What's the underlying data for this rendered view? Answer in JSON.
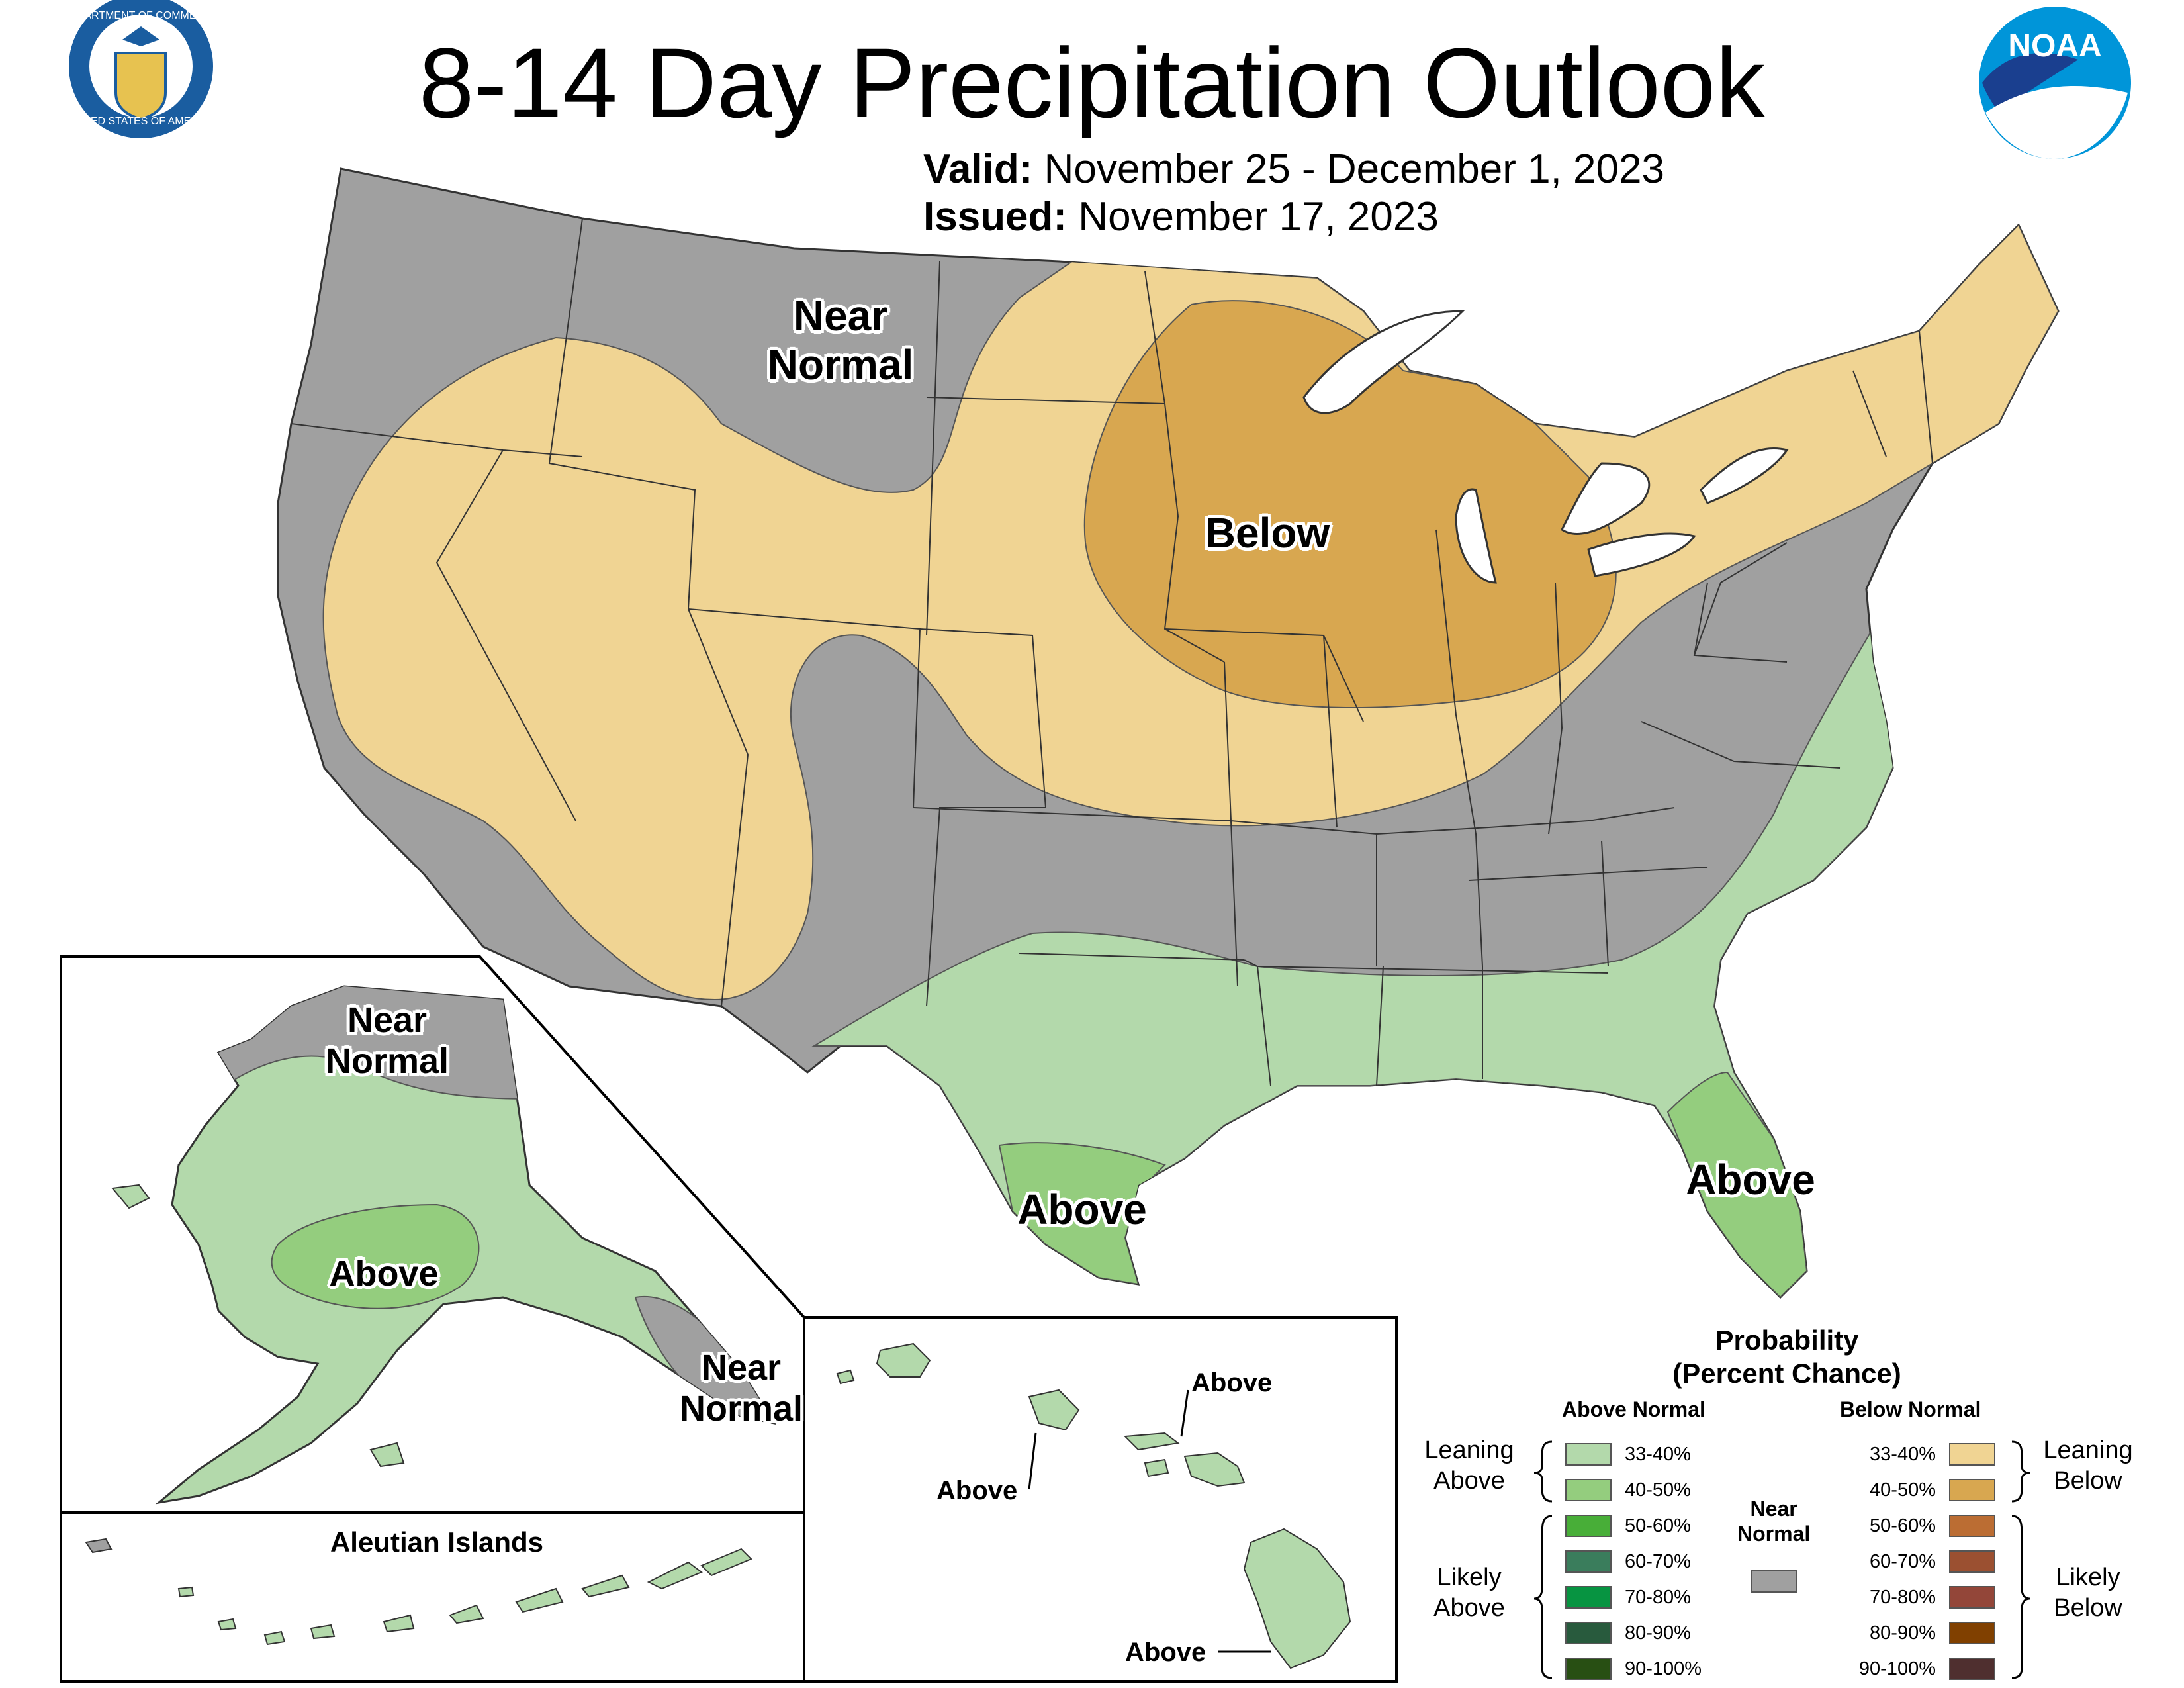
{
  "title": "8-14 Day Precipitation Outlook",
  "validity": {
    "valid_key": "Valid:",
    "valid_value": "November 25 - December 1, 2023",
    "issued_key": "Issued:",
    "issued_value": "November 17, 2023"
  },
  "logos": {
    "commerce_seal_top": "DEPARTMENT OF COMMERCE",
    "commerce_seal_bottom": "UNITED STATES OF AMERICA",
    "noaa": "NOAA"
  },
  "colors": {
    "near_normal": "#a0a0a0",
    "leaning_below": "#f0d493",
    "below_40_50": "#d8a750",
    "leaning_above": "#b3d9ab",
    "above_40_50": "#94cd7e",
    "water": "#ffffff",
    "border": "#333333"
  },
  "map_labels": {
    "conus_near_normal_1": "Near",
    "conus_near_normal_2": "Normal",
    "conus_below": "Below",
    "texas_above": "Above",
    "florida_above": "Above",
    "alaska_near_normal_n_1": "Near",
    "alaska_near_normal_n_2": "Normal",
    "alaska_above": "Above",
    "alaska_near_normal_se_1": "Near",
    "alaska_near_normal_se_2": "Normal",
    "aleutian_title": "Aleutian Islands",
    "hawaii_above_1": "Above",
    "hawaii_above_2": "Above",
    "hawaii_above_3": "Above"
  },
  "legend": {
    "title_1": "Probability",
    "title_2": "(Percent Chance)",
    "above_header": "Above Normal",
    "below_header": "Below Normal",
    "near_normal_1": "Near",
    "near_normal_2": "Normal",
    "leaning_above_1": "Leaning",
    "leaning_above_2": "Above",
    "likely_above_1": "Likely",
    "likely_above_2": "Above",
    "leaning_below_1": "Leaning",
    "leaning_below_2": "Below",
    "likely_below_1": "Likely",
    "likely_below_2": "Below",
    "above_bins": [
      {
        "label": "33-40%",
        "color": "#b3d9ab"
      },
      {
        "label": "40-50%",
        "color": "#94cd7e"
      },
      {
        "label": "50-60%",
        "color": "#48ae38"
      },
      {
        "label": "60-70%",
        "color": "#3a7d5c"
      },
      {
        "label": "70-80%",
        "color": "#079441"
      },
      {
        "label": "80-90%",
        "color": "#285a3d"
      },
      {
        "label": "90-100%",
        "color": "#284f13"
      }
    ],
    "below_bins": [
      {
        "label": "33-40%",
        "color": "#f0d493"
      },
      {
        "label": "40-50%",
        "color": "#d8a750"
      },
      {
        "label": "50-60%",
        "color": "#bb6d33"
      },
      {
        "label": "60-70%",
        "color": "#9b5031"
      },
      {
        "label": "70-80%",
        "color": "#934639"
      },
      {
        "label": "80-90%",
        "color": "#804000"
      },
      {
        "label": "90-100%",
        "color": "#4f2f2f"
      }
    ],
    "near_normal_color": "#a0a0a0"
  }
}
